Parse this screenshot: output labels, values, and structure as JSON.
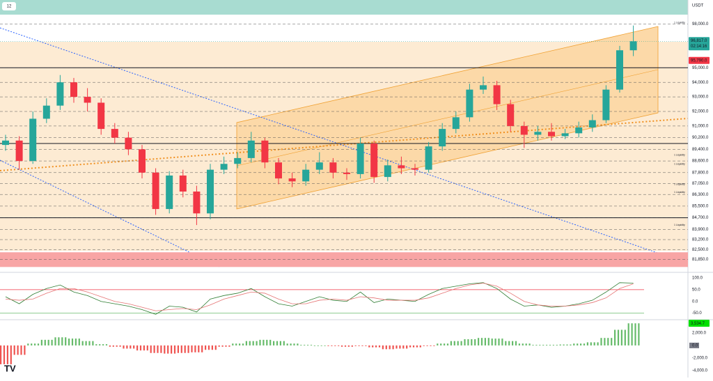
{
  "chart_data": [
    {
      "type": "candlestick",
      "symbol_interval": "12",
      "currency": "USDT",
      "countdown": "02:14:16",
      "open": [
        89700,
        90000,
        88600,
        91500,
        92400,
        94000,
        93000,
        92600,
        90800,
        90200,
        89400,
        87800,
        85300,
        87600,
        86500,
        85000,
        88000,
        88400,
        88800,
        90000,
        88500,
        87400,
        87200,
        88000,
        88500,
        87800,
        87700,
        89800,
        87500,
        88300,
        88100,
        88000,
        89600,
        90800,
        91600,
        93500,
        93800,
        92500,
        91000,
        90400,
        90600,
        90300,
        90500,
        90900,
        91400,
        93500,
        96200
      ],
      "high": [
        90400,
        90300,
        92000,
        92900,
        94500,
        94300,
        93600,
        92900,
        91200,
        90600,
        89700,
        88100,
        87900,
        88000,
        86900,
        88400,
        88900,
        89200,
        90600,
        90200,
        88800,
        87800,
        88400,
        89200,
        88800,
        88100,
        90200,
        90000,
        88700,
        88900,
        88400,
        89900,
        91200,
        92000,
        93900,
        94400,
        94100,
        92800,
        91300,
        91000,
        91200,
        90800,
        91300,
        91800,
        93800,
        96500,
        97900
      ],
      "low": [
        89300,
        88000,
        88400,
        91200,
        92100,
        92600,
        92000,
        90400,
        89800,
        89000,
        87400,
        84900,
        85000,
        86100,
        84200,
        84600,
        87700,
        88100,
        88500,
        88100,
        87000,
        86800,
        86900,
        87700,
        87400,
        87300,
        87400,
        87100,
        87200,
        87700,
        87600,
        87800,
        89300,
        90500,
        91300,
        93200,
        92100,
        90600,
        89500,
        90000,
        90000,
        90100,
        90200,
        90600,
        91200,
        93300,
        95800
      ],
      "close": [
        90000,
        88600,
        91500,
        92400,
        94000,
        93000,
        92600,
        90800,
        90200,
        89400,
        87800,
        85300,
        87600,
        86500,
        85000,
        88000,
        88400,
        88800,
        90000,
        88500,
        87400,
        87200,
        88000,
        88500,
        87800,
        87700,
        89800,
        87500,
        88300,
        88100,
        88000,
        89600,
        90800,
        91600,
        93500,
        93800,
        92500,
        91000,
        90400,
        90600,
        90300,
        90500,
        90900,
        91400,
        93500,
        96200,
        96817
      ],
      "value_labels": [
        null,
        null,
        null,
        null,
        null,
        null,
        null,
        null,
        null,
        null,
        null,
        null,
        null,
        null,
        null,
        null,
        null,
        null,
        null,
        null,
        null,
        null,
        null,
        null,
        null,
        null,
        null,
        null,
        null,
        null,
        null,
        null,
        null,
        null,
        null,
        null,
        null,
        null,
        null,
        null,
        null,
        null,
        null,
        null,
        null,
        null,
        "96,817.0"
      ],
      "up_color": "#26a69a",
      "down_color": "#f23645",
      "price_marker": {
        "value": 95790,
        "label": "95,790.0",
        "color": "#f23645"
      },
      "levels": [
        95000,
        89800,
        84700
      ],
      "zone": [
        81320,
        82330
      ],
      "liquidity_labels": [
        {
          "value": 98000,
          "label": "1 Liquidity"
        },
        {
          "value": 88900,
          "label": "1 Liquidity"
        },
        {
          "value": 88300,
          "label": "1 Liquidity"
        },
        {
          "value": 86900,
          "label": "1 Liquidity"
        },
        {
          "value": 86350,
          "label": "1 Liquidity"
        },
        {
          "value": 84100,
          "label": "1 Liquidity"
        }
      ],
      "ylim": [
        81000,
        98600
      ],
      "yticks": [
        {
          "value": 98000,
          "label": "98,000.0"
        },
        {
          "value": 95000,
          "label": "95,000.0"
        },
        {
          "value": 94000,
          "label": "94,000.0"
        },
        {
          "value": 93000,
          "label": "93,000.0"
        },
        {
          "value": 92000,
          "label": "92,000.0"
        },
        {
          "value": 91000,
          "label": "91,000.0"
        },
        {
          "value": 90200,
          "label": "90,200.0"
        },
        {
          "value": 89400,
          "label": "89,400.0"
        },
        {
          "value": 88600,
          "label": "88,600.0"
        },
        {
          "value": 87800,
          "label": "87,800.0"
        },
        {
          "value": 87050,
          "label": "87,050.0"
        },
        {
          "value": 86300,
          "label": "86,300.0"
        },
        {
          "value": 85500,
          "label": "85,500.0"
        },
        {
          "value": 84700,
          "label": "84,700.0"
        },
        {
          "value": 83900,
          "label": "83,900.0"
        },
        {
          "value": 83200,
          "label": "83,200.0"
        },
        {
          "value": 82500,
          "label": "82,500.0"
        },
        {
          "value": 81850,
          "label": "81,850.0"
        }
      ]
    },
    {
      "type": "line",
      "series": [
        {
          "color": "#2e7d32",
          "values": [
            20,
            -10,
            30,
            55,
            70,
            40,
            25,
            0,
            -10,
            -20,
            -35,
            -55,
            -20,
            -25,
            -45,
            10,
            25,
            35,
            55,
            20,
            -10,
            -20,
            0,
            20,
            5,
            0,
            40,
            -5,
            10,
            5,
            0,
            30,
            55,
            65,
            75,
            80,
            55,
            10,
            -20,
            -15,
            -25,
            -20,
            -10,
            5,
            40,
            80,
            78
          ]
        },
        {
          "color": "#e57373",
          "values": [
            10,
            5,
            10,
            35,
            55,
            55,
            40,
            20,
            0,
            -10,
            -25,
            -40,
            -35,
            -30,
            -35,
            -15,
            10,
            25,
            40,
            35,
            10,
            -10,
            -10,
            5,
            10,
            5,
            20,
            15,
            5,
            5,
            5,
            15,
            35,
            55,
            70,
            78,
            65,
            35,
            0,
            -15,
            -20,
            -20,
            -15,
            -5,
            15,
            55,
            75
          ]
        }
      ],
      "ylim": [
        -75,
        118
      ],
      "yticks": [
        {
          "value": 100,
          "label": "100.0"
        },
        {
          "value": 50,
          "label": "50.0"
        },
        {
          "value": 0,
          "label": "0.0"
        },
        {
          "value": -50,
          "label": "-50.0"
        }
      ]
    },
    {
      "type": "histogram",
      "values": [
        -3000,
        -1500,
        300,
        900,
        1300,
        1100,
        700,
        200,
        -200,
        -500,
        -800,
        -1200,
        -1300,
        -1200,
        -1100,
        -700,
        -200,
        300,
        700,
        900,
        700,
        300,
        100,
        0,
        -100,
        -200,
        -100,
        -300,
        -600,
        -500,
        -300,
        -100,
        300,
        700,
        1000,
        1200,
        1100,
        700,
        300,
        100,
        100,
        150,
        300,
        500,
        1200,
        2500,
        3534.7
      ],
      "value_labels": [
        null,
        null,
        null,
        null,
        null,
        null,
        null,
        null,
        null,
        null,
        null,
        null,
        null,
        null,
        null,
        null,
        null,
        null,
        null,
        null,
        null,
        null,
        null,
        null,
        null,
        null,
        null,
        null,
        null,
        null,
        null,
        null,
        null,
        null,
        null,
        null,
        null,
        null,
        null,
        null,
        null,
        null,
        null,
        null,
        null,
        null,
        "3,534.7"
      ],
      "up_color": "#66bb6a",
      "down_color": "#ef5350",
      "ylim": [
        -4900,
        4000
      ],
      "yticks": [
        {
          "value": 2000,
          "label": "2,000.0"
        },
        {
          "value": 0,
          "label": "0.0"
        },
        {
          "value": -2000,
          "label": "-2,000.0"
        },
        {
          "value": -4000,
          "label": "-4,000.0"
        }
      ]
    }
  ]
}
